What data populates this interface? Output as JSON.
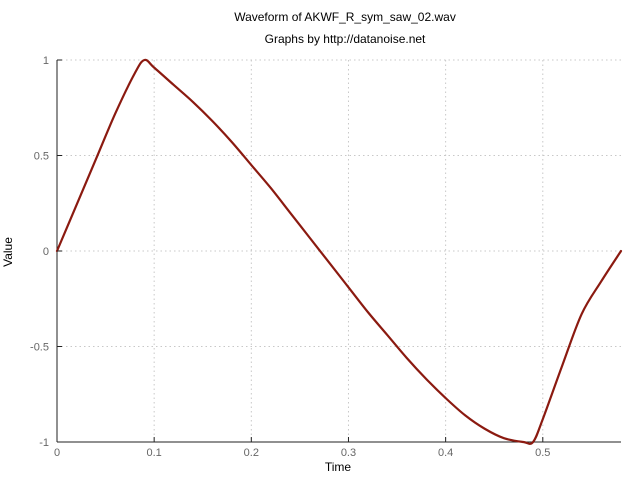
{
  "chart_data": {
    "type": "line",
    "title": "Waveform of AKWF_R_sym_saw_02.wav",
    "subtitle": "Graphs by http://datanoise.net",
    "xlabel": "Time",
    "ylabel": "Value",
    "xlim": [
      0,
      0.5805
    ],
    "ylim": [
      -1,
      1
    ],
    "xticks": [
      0,
      0.1,
      0.2,
      0.3,
      0.4,
      0.5
    ],
    "xtick_labels": [
      "0",
      "0.1",
      "0.2",
      "0.3",
      "0.4",
      "0.5"
    ],
    "yticks": [
      1,
      0.5,
      0,
      -0.5,
      -1
    ],
    "ytick_labels": [
      "1",
      "0.5",
      "0",
      "-0.5",
      "-1"
    ],
    "grid": true,
    "series": [
      {
        "color": "#8b1a10",
        "x": [
          0,
          0.02,
          0.04,
          0.06,
          0.08,
          0.09,
          0.1,
          0.12,
          0.14,
          0.16,
          0.18,
          0.2,
          0.22,
          0.24,
          0.26,
          0.28,
          0.3,
          0.32,
          0.34,
          0.36,
          0.38,
          0.4,
          0.42,
          0.44,
          0.46,
          0.48,
          0.49,
          0.5,
          0.52,
          0.54,
          0.56,
          0.5805
        ],
        "y": [
          0,
          0.24,
          0.48,
          0.72,
          0.93,
          1.0,
          0.96,
          0.87,
          0.78,
          0.68,
          0.57,
          0.45,
          0.33,
          0.2,
          0.07,
          -0.06,
          -0.19,
          -0.32,
          -0.44,
          -0.56,
          -0.67,
          -0.77,
          -0.86,
          -0.93,
          -0.98,
          -1.0,
          -1.0,
          -0.88,
          -0.6,
          -0.33,
          -0.16,
          0.0
        ]
      }
    ]
  }
}
